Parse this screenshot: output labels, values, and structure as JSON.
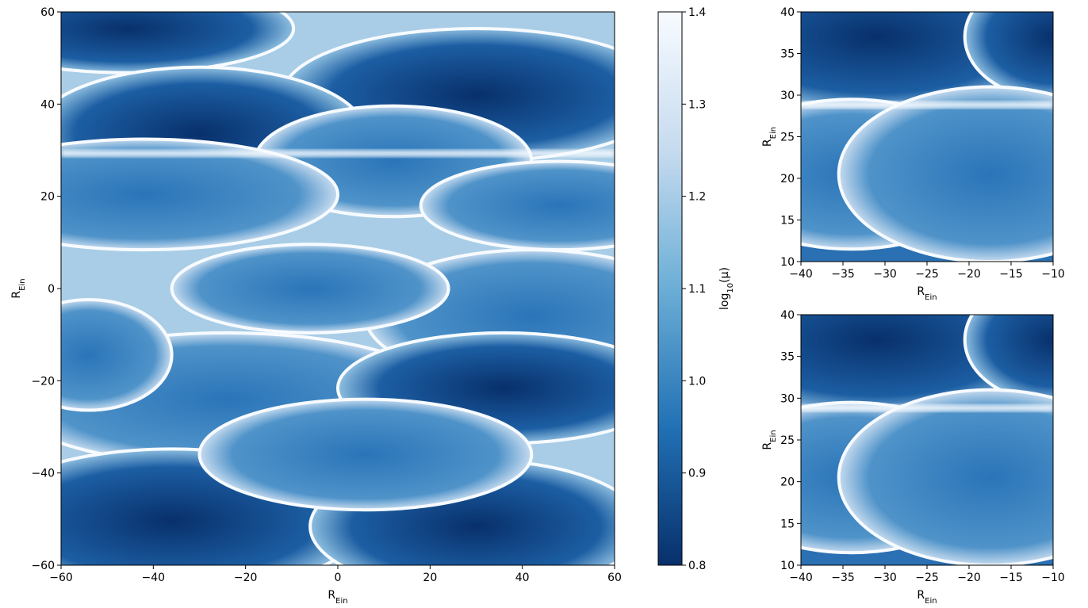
{
  "chart_data": [
    {
      "type": "heatmap",
      "xlim": [
        -60,
        60
      ],
      "ylim": [
        -60,
        60
      ],
      "xticks": [
        {
          "value": -60,
          "label": "−60"
        },
        {
          "value": -40,
          "label": "−40"
        },
        {
          "value": -20,
          "label": "−20"
        },
        0,
        20,
        40,
        60
      ],
      "yticks": [
        {
          "value": -60,
          "label": "−60"
        },
        {
          "value": -40,
          "label": "−40"
        },
        {
          "value": -20,
          "label": "−20"
        },
        0,
        20,
        40,
        60
      ],
      "xlabel": [
        {
          "text": "R"
        },
        {
          "text": "Ein",
          "sub": true
        }
      ],
      "ylabel": [
        {
          "text": "R"
        },
        {
          "text": "Ein",
          "sub": true
        }
      ]
    },
    {
      "type": "heatmap",
      "xlim": [
        -40,
        -10
      ],
      "ylim": [
        10,
        40
      ],
      "xticks": [
        {
          "value": -40,
          "label": "−40"
        },
        {
          "value": -35,
          "label": "−35"
        },
        {
          "value": -30,
          "label": "−30"
        },
        {
          "value": -25,
          "label": "−25"
        },
        {
          "value": -20,
          "label": "−20"
        },
        {
          "value": -15,
          "label": "−15"
        },
        {
          "value": -10,
          "label": "−10"
        }
      ],
      "yticks": [
        10,
        15,
        20,
        25,
        30,
        35,
        40
      ],
      "xlabel": [
        {
          "text": "R"
        },
        {
          "text": "Ein",
          "sub": true
        }
      ],
      "ylabel": [
        {
          "text": "R"
        },
        {
          "text": "Ein",
          "sub": true
        }
      ]
    },
    {
      "type": "heatmap",
      "xlim": [
        -40,
        -10
      ],
      "ylim": [
        10,
        40
      ],
      "xticks": [
        {
          "value": -40,
          "label": "−40"
        },
        {
          "value": -35,
          "label": "−35"
        },
        {
          "value": -30,
          "label": "−30"
        },
        {
          "value": -25,
          "label": "−25"
        },
        {
          "value": -20,
          "label": "−20"
        },
        {
          "value": -15,
          "label": "−15"
        },
        {
          "value": -10,
          "label": "−10"
        }
      ],
      "yticks": [
        10,
        15,
        20,
        25,
        30,
        35,
        40
      ],
      "xlabel": [
        {
          "text": "R"
        },
        {
          "text": "Ein",
          "sub": true
        }
      ],
      "ylabel": [
        {
          "text": "R"
        },
        {
          "text": "Ein",
          "sub": true
        }
      ]
    },
    {
      "type": "colorbar",
      "ylim": [
        0.8,
        1.4
      ],
      "yticks": [
        0.8,
        0.9,
        {
          "value": 1.0,
          "label": "1.0"
        },
        1.1,
        1.2,
        1.3,
        1.4
      ],
      "colors": [
        "#08306b",
        "#2171b5",
        "#6baed6",
        "#c6dbef",
        "#f7fbff"
      ],
      "ylabel": [
        {
          "text": "log"
        },
        {
          "text": "10",
          "sub": true
        },
        {
          "text": "(μ)"
        }
      ]
    }
  ]
}
